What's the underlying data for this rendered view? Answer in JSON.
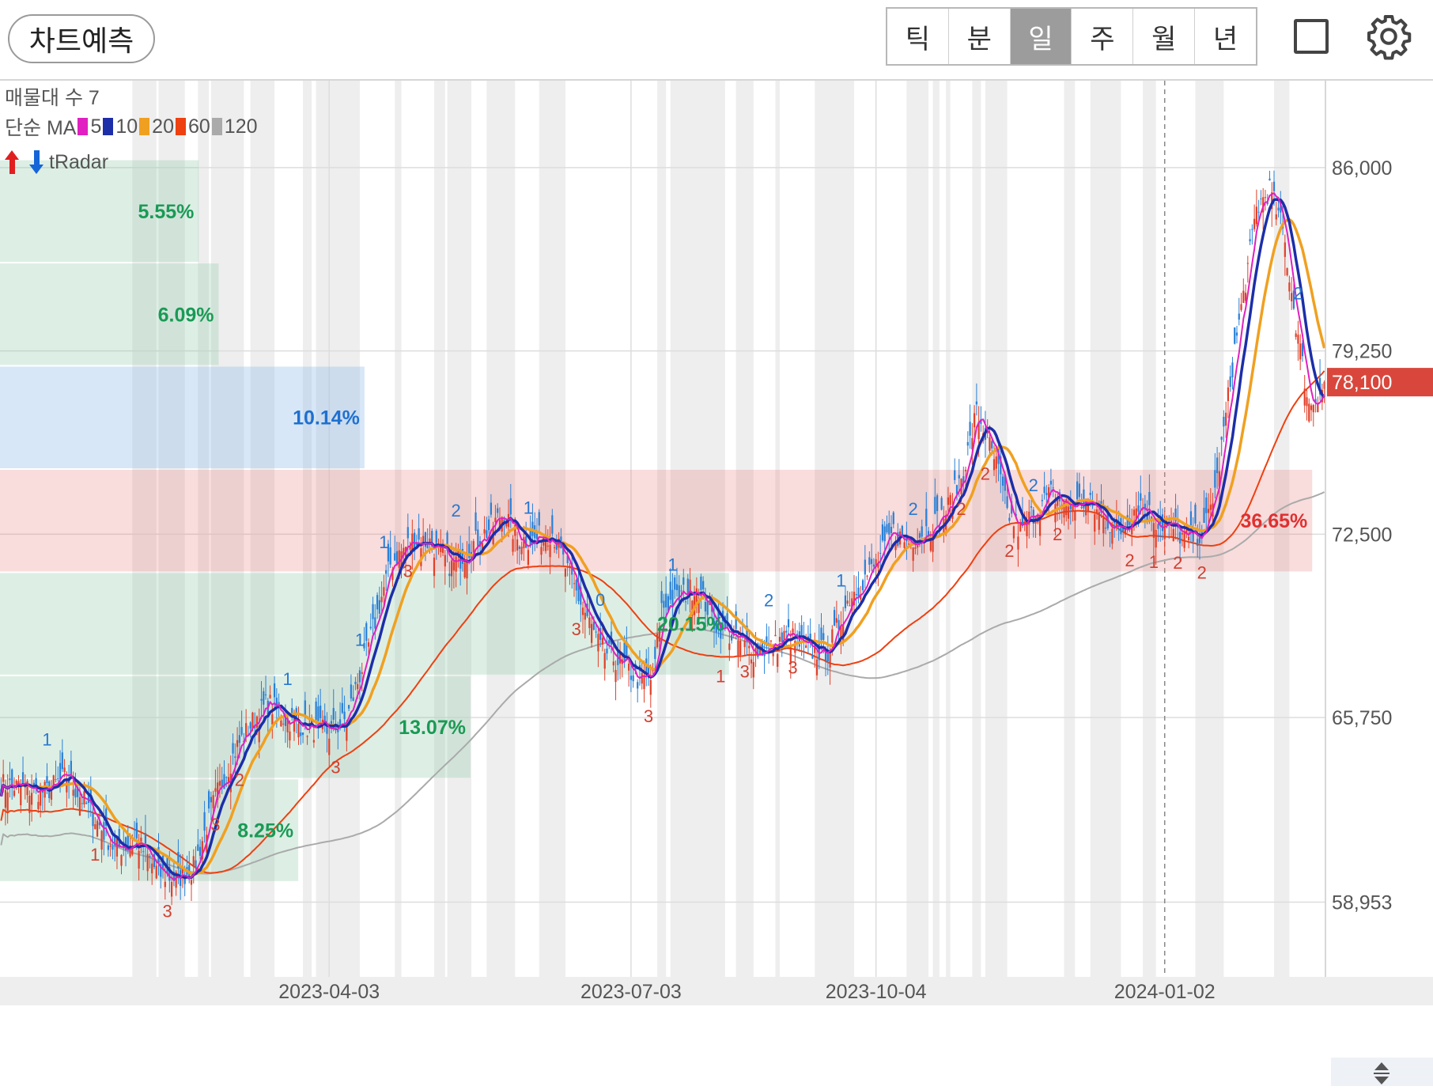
{
  "toolbar": {
    "forecast_label": "차트예측",
    "tabs": [
      {
        "label": "틱",
        "active": false
      },
      {
        "label": "분",
        "active": false
      },
      {
        "label": "일",
        "active": true
      },
      {
        "label": "주",
        "active": false
      },
      {
        "label": "월",
        "active": false
      },
      {
        "label": "년",
        "active": false
      }
    ],
    "icons": [
      "square-icon",
      "gear-icon"
    ]
  },
  "indicators": {
    "volume_profile_label": "매물대 수 7",
    "ma_prefix": "단순 MA",
    "ma": [
      {
        "period": "5",
        "color": "#e020c0"
      },
      {
        "period": "10",
        "color": "#1c2ea8"
      },
      {
        "period": "20",
        "color": "#f0a020"
      },
      {
        "period": "60",
        "color": "#ee4010"
      },
      {
        "period": "120",
        "color": "#aaaaaa"
      }
    ],
    "tradar_label": "tRadar"
  },
  "chart_data": {
    "type": "candlestick",
    "y_ticks": [
      "86,000",
      "79,250",
      "72,500",
      "65,750",
      "58,953"
    ],
    "ylim": [
      56200,
      89200
    ],
    "x_labels": [
      "2023-04-03",
      "2023-07-03",
      "2023-10-04",
      "2024-01-02"
    ],
    "current_price": "78,100",
    "volume_profile": [
      {
        "low": 82500,
        "high": 86300,
        "pct": "5.55%",
        "length": 0.15
      },
      {
        "low": 78700,
        "high": 82500,
        "pct": "6.09%",
        "length": 0.165
      },
      {
        "low": 74900,
        "high": 78700,
        "pct": "10.14%",
        "length": 0.275
      },
      {
        "low": 71100,
        "high": 74900,
        "pct": "36.65%",
        "length": 0.99
      },
      {
        "low": 67300,
        "high": 71100,
        "pct": "20.15%",
        "length": 0.55
      },
      {
        "low": 63500,
        "high": 67300,
        "pct": "13.07%",
        "length": 0.355
      },
      {
        "low": 59700,
        "high": 63500,
        "pct": "8.25%",
        "length": 0.225
      }
    ],
    "close_path": [
      [
        0,
        63300
      ],
      [
        20,
        63000
      ],
      [
        30,
        63600
      ],
      [
        40,
        62400
      ],
      [
        52,
        60900
      ],
      [
        62,
        61200
      ],
      [
        72,
        60000
      ],
      [
        80,
        59800
      ],
      [
        88,
        60200
      ],
      [
        98,
        62800
      ],
      [
        108,
        64700
      ],
      [
        116,
        65700
      ],
      [
        122,
        66300
      ],
      [
        130,
        65700
      ],
      [
        140,
        65400
      ],
      [
        150,
        65200
      ],
      [
        158,
        65700
      ],
      [
        168,
        68400
      ],
      [
        178,
        71400
      ],
      [
        188,
        72300
      ],
      [
        196,
        72200
      ],
      [
        206,
        71300
      ],
      [
        214,
        72000
      ],
      [
        222,
        72600
      ],
      [
        230,
        73300
      ],
      [
        236,
        72300
      ],
      [
        244,
        72300
      ],
      [
        252,
        72600
      ],
      [
        258,
        71300
      ],
      [
        266,
        69800
      ],
      [
        274,
        68300
      ],
      [
        284,
        67700
      ],
      [
        292,
        67100
      ],
      [
        298,
        67200
      ],
      [
        302,
        69800
      ],
      [
        310,
        70200
      ],
      [
        318,
        70600
      ],
      [
        326,
        69300
      ],
      [
        336,
        68600
      ],
      [
        344,
        68200
      ],
      [
        352,
        68300
      ],
      [
        360,
        68800
      ],
      [
        368,
        68200
      ],
      [
        378,
        68200
      ],
      [
        388,
        70200
      ],
      [
        400,
        71400
      ],
      [
        408,
        72600
      ],
      [
        414,
        72200
      ],
      [
        422,
        72600
      ],
      [
        432,
        73300
      ],
      [
        440,
        74800
      ],
      [
        446,
        77000
      ],
      [
        450,
        76200
      ],
      [
        456,
        74800
      ],
      [
        460,
        73300
      ],
      [
        466,
        72600
      ],
      [
        472,
        73300
      ],
      [
        480,
        74000
      ],
      [
        488,
        73500
      ],
      [
        496,
        73700
      ],
      [
        504,
        73100
      ],
      [
        512,
        72600
      ],
      [
        520,
        73700
      ],
      [
        528,
        73000
      ],
      [
        536,
        72700
      ],
      [
        542,
        72300
      ],
      [
        550,
        72600
      ],
      [
        556,
        74500
      ],
      [
        564,
        79300
      ],
      [
        570,
        82300
      ],
      [
        574,
        84500
      ],
      [
        580,
        85200
      ],
      [
        586,
        83700
      ],
      [
        592,
        80300
      ],
      [
        598,
        77200
      ],
      [
        606,
        78100
      ]
    ],
    "markers_blue": [
      "0",
      "1",
      "2"
    ],
    "markers_red": [
      "1",
      "2",
      "3"
    ]
  }
}
